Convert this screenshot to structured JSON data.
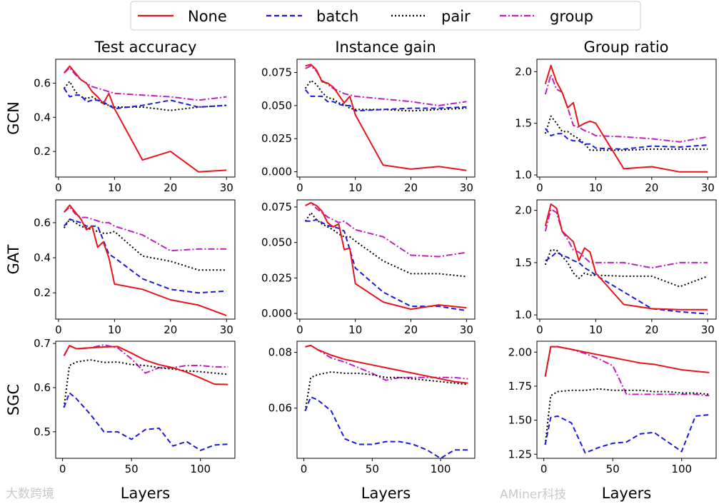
{
  "chart_data": {
    "type": "line",
    "legend": {
      "placement": "top-center",
      "entries": [
        {
          "name": "None",
          "color": "#e8141b",
          "style": "solid"
        },
        {
          "name": "batch",
          "color": "#1a1adb",
          "style": "dashed"
        },
        {
          "name": "pair",
          "color": "#000000",
          "style": "dotted"
        },
        {
          "name": "group",
          "color": "#bf1fbf",
          "style": "dashdot"
        }
      ]
    },
    "column_titles": [
      "Test accuracy",
      "Instance gain",
      "Group ratio"
    ],
    "row_labels": [
      "GCN",
      "GAT",
      "SGC"
    ],
    "xlabel": "Layers",
    "watermarks": [
      "大数跨境",
      "AMiner科技"
    ],
    "panels": [
      {
        "row": 0,
        "col": 0,
        "xlim": [
          -0.5,
          31.5
        ],
        "ylim": [
          0.05,
          0.74
        ],
        "xticks": [
          0,
          10,
          20,
          30
        ],
        "xticklabels": [
          "0",
          "10",
          "20",
          "30"
        ],
        "yticks": [
          0.2,
          0.4,
          0.6
        ],
        "yticklabels": [
          "0.2",
          "0.4",
          "0.6"
        ],
        "x": [
          1,
          2,
          3,
          4,
          5,
          6,
          7,
          8,
          9,
          10,
          15,
          20,
          25,
          30
        ],
        "series": {
          "None": [
            0.66,
            0.7,
            0.66,
            0.62,
            0.6,
            0.55,
            0.52,
            0.48,
            0.54,
            0.45,
            0.15,
            0.2,
            0.08,
            0.09
          ],
          "batch": [
            0.57,
            0.52,
            0.53,
            0.53,
            0.49,
            0.5,
            0.5,
            0.49,
            0.47,
            0.45,
            0.47,
            0.5,
            0.46,
            0.47
          ],
          "pair": [
            0.57,
            0.61,
            0.55,
            0.52,
            0.51,
            0.52,
            0.5,
            0.48,
            0.47,
            0.46,
            0.46,
            0.44,
            0.46,
            0.47
          ],
          "group": [
            0.66,
            0.69,
            0.65,
            0.62,
            0.6,
            0.58,
            0.57,
            0.56,
            0.55,
            0.54,
            0.53,
            0.52,
            0.5,
            0.52
          ]
        }
      },
      {
        "row": 0,
        "col": 1,
        "xlim": [
          -0.5,
          31.5
        ],
        "ylim": [
          -0.004,
          0.085
        ],
        "xticks": [
          0,
          10,
          20,
          30
        ],
        "xticklabels": [
          "0",
          "10",
          "20",
          "30"
        ],
        "yticks": [
          0,
          0.025,
          0.05,
          0.075
        ],
        "yticklabels": [
          "0.000",
          "0.025",
          "0.050",
          "0.075"
        ],
        "x": [
          1,
          2,
          3,
          4,
          5,
          6,
          7,
          8,
          9,
          10,
          15,
          20,
          25,
          30
        ],
        "series": {
          "None": [
            0.08,
            0.081,
            0.077,
            0.068,
            0.067,
            0.064,
            0.058,
            0.052,
            0.057,
            0.043,
            0.005,
            0.002,
            0.004,
            0.001
          ],
          "batch": [
            0.062,
            0.057,
            0.057,
            0.057,
            0.053,
            0.053,
            0.051,
            0.05,
            0.05,
            0.046,
            0.047,
            0.048,
            0.048,
            0.049
          ],
          "pair": [
            0.063,
            0.069,
            0.066,
            0.06,
            0.056,
            0.055,
            0.052,
            0.051,
            0.048,
            0.047,
            0.047,
            0.046,
            0.047,
            0.048
          ],
          "group": [
            0.078,
            0.08,
            0.076,
            0.069,
            0.066,
            0.063,
            0.061,
            0.059,
            0.058,
            0.057,
            0.055,
            0.053,
            0.05,
            0.053
          ]
        }
      },
      {
        "row": 0,
        "col": 2,
        "xlim": [
          -0.5,
          31.5
        ],
        "ylim": [
          0.98,
          2.12
        ],
        "xticks": [
          0,
          10,
          20,
          30
        ],
        "xticklabels": [
          "0",
          "10",
          "20",
          "30"
        ],
        "yticks": [
          1.0,
          1.5,
          2.0
        ],
        "yticklabels": [
          "1.0",
          "1.5",
          "2.0"
        ],
        "x": [
          1,
          2,
          3,
          4,
          5,
          6,
          7,
          8,
          9,
          10,
          15,
          20,
          25,
          30
        ],
        "series": {
          "None": [
            1.88,
            2.06,
            1.9,
            1.8,
            1.65,
            1.7,
            1.47,
            1.5,
            1.52,
            1.5,
            1.06,
            1.08,
            1.03,
            1.03
          ],
          "batch": [
            1.45,
            1.38,
            1.4,
            1.4,
            1.35,
            1.33,
            1.33,
            1.3,
            1.3,
            1.26,
            1.25,
            1.28,
            1.27,
            1.29
          ],
          "pair": [
            1.4,
            1.57,
            1.5,
            1.42,
            1.42,
            1.38,
            1.35,
            1.3,
            1.24,
            1.24,
            1.24,
            1.25,
            1.25,
            1.25
          ],
          "group": [
            1.78,
            1.97,
            1.83,
            1.8,
            1.65,
            1.48,
            1.46,
            1.43,
            1.41,
            1.38,
            1.37,
            1.35,
            1.32,
            1.37
          ]
        }
      },
      {
        "row": 1,
        "col": 0,
        "xlim": [
          -0.5,
          31.5
        ],
        "ylim": [
          0.05,
          0.73
        ],
        "xticks": [
          0,
          10,
          20,
          30
        ],
        "xticklabels": [
          "0",
          "10",
          "20",
          "30"
        ],
        "yticks": [
          0.2,
          0.4,
          0.6
        ],
        "yticklabels": [
          "0.2",
          "0.4",
          "0.6"
        ],
        "x": [
          1,
          2,
          3,
          4,
          5,
          6,
          7,
          8,
          9,
          10,
          15,
          20,
          25,
          30
        ],
        "series": {
          "None": [
            0.66,
            0.7,
            0.66,
            0.62,
            0.56,
            0.58,
            0.46,
            0.49,
            0.4,
            0.25,
            0.22,
            0.16,
            0.13,
            0.07
          ],
          "batch": [
            0.58,
            0.62,
            0.61,
            0.6,
            0.58,
            0.58,
            0.58,
            0.5,
            0.42,
            0.4,
            0.28,
            0.22,
            0.2,
            0.21
          ],
          "pair": [
            0.57,
            0.62,
            0.6,
            0.58,
            0.57,
            0.56,
            0.55,
            0.54,
            0.54,
            0.55,
            0.41,
            0.38,
            0.33,
            0.33
          ],
          "group": [
            0.66,
            0.69,
            0.65,
            0.63,
            0.63,
            0.62,
            0.61,
            0.6,
            0.6,
            0.58,
            0.53,
            0.44,
            0.45,
            0.45
          ]
        }
      },
      {
        "row": 1,
        "col": 1,
        "xlim": [
          -0.5,
          31.5
        ],
        "ylim": [
          -0.004,
          0.08
        ],
        "xticks": [
          0,
          10,
          20,
          30
        ],
        "xticklabels": [
          "0",
          "10",
          "20",
          "30"
        ],
        "yticks": [
          0,
          0.025,
          0.05,
          0.075
        ],
        "yticklabels": [
          "0.000",
          "0.025",
          "0.050",
          "0.075"
        ],
        "x": [
          1,
          2,
          3,
          4,
          5,
          6,
          7,
          8,
          9,
          10,
          15,
          20,
          25,
          30
        ],
        "series": {
          "None": [
            0.076,
            0.078,
            0.076,
            0.072,
            0.064,
            0.061,
            0.063,
            0.045,
            0.046,
            0.021,
            0.008,
            0.003,
            0.006,
            0.004
          ],
          "batch": [
            0.065,
            0.065,
            0.066,
            0.064,
            0.062,
            0.061,
            0.06,
            0.058,
            0.045,
            0.032,
            0.015,
            0.005,
            0.005,
            0.002
          ],
          "pair": [
            0.065,
            0.071,
            0.066,
            0.063,
            0.061,
            0.059,
            0.056,
            0.054,
            0.054,
            0.051,
            0.037,
            0.028,
            0.028,
            0.026
          ],
          "group": [
            0.076,
            0.078,
            0.074,
            0.071,
            0.068,
            0.066,
            0.064,
            0.065,
            0.062,
            0.059,
            0.054,
            0.041,
            0.04,
            0.043
          ]
        }
      },
      {
        "row": 1,
        "col": 2,
        "xlim": [
          -0.5,
          31.5
        ],
        "ylim": [
          0.96,
          2.1
        ],
        "xticks": [
          0,
          10,
          20,
          30
        ],
        "xticklabels": [
          "0",
          "10",
          "20",
          "30"
        ],
        "yticks": [
          1.0,
          1.5,
          2.0
        ],
        "yticklabels": [
          "1.0",
          "1.5",
          "2.0"
        ],
        "x": [
          1,
          2,
          3,
          4,
          5,
          6,
          7,
          8,
          9,
          10,
          15,
          20,
          25,
          30
        ],
        "series": {
          "None": [
            1.85,
            2.06,
            2.02,
            1.8,
            1.75,
            1.7,
            1.52,
            1.64,
            1.6,
            1.4,
            1.1,
            1.06,
            1.05,
            1.05
          ],
          "batch": [
            1.52,
            1.55,
            1.6,
            1.57,
            1.55,
            1.52,
            1.5,
            1.45,
            1.42,
            1.38,
            1.22,
            1.06,
            1.03,
            1.01
          ],
          "pair": [
            1.48,
            1.62,
            1.62,
            1.56,
            1.5,
            1.4,
            1.35,
            1.4,
            1.38,
            1.38,
            1.37,
            1.37,
            1.27,
            1.37
          ],
          "group": [
            1.8,
            2.01,
            1.98,
            1.8,
            1.72,
            1.62,
            1.6,
            1.55,
            1.5,
            1.5,
            1.5,
            1.45,
            1.5,
            1.5
          ]
        }
      },
      {
        "row": 2,
        "col": 0,
        "xlim": [
          -5,
          125
        ],
        "ylim": [
          0.44,
          0.705
        ],
        "xticks": [
          0,
          50,
          100
        ],
        "xticklabels": [
          "0",
          "50",
          "100"
        ],
        "yticks": [
          0.5,
          0.6,
          0.7
        ],
        "yticklabels": [
          "0.5",
          "0.6",
          "0.7"
        ],
        "x": [
          1,
          5,
          10,
          20,
          30,
          40,
          50,
          60,
          70,
          80,
          90,
          100,
          110,
          120
        ],
        "series": {
          "None": [
            0.672,
            0.695,
            0.688,
            0.69,
            0.692,
            0.693,
            0.678,
            0.662,
            0.652,
            0.645,
            0.635,
            0.622,
            0.608,
            0.607
          ],
          "batch": [
            0.555,
            0.588,
            0.575,
            0.54,
            0.5,
            0.5,
            0.483,
            0.505,
            0.508,
            0.468,
            0.478,
            0.458,
            0.47,
            0.472
          ],
          "pair": [
            0.555,
            0.65,
            0.658,
            0.663,
            0.657,
            0.658,
            0.652,
            0.65,
            0.645,
            0.642,
            0.638,
            0.636,
            0.633,
            0.63
          ],
          "group": [
            0.672,
            0.695,
            0.688,
            0.69,
            0.697,
            0.69,
            0.665,
            0.633,
            0.645,
            0.645,
            0.65,
            0.65,
            0.647,
            0.647
          ]
        }
      },
      {
        "row": 2,
        "col": 1,
        "xlim": [
          -5,
          125
        ],
        "ylim": [
          0.042,
          0.084
        ],
        "xticks": [
          0,
          50,
          100
        ],
        "xticklabels": [
          "0",
          "50",
          "100"
        ],
        "yticks": [
          0.06,
          0.08
        ],
        "yticklabels": [
          "0.06",
          "0.08"
        ],
        "x": [
          1,
          5,
          10,
          20,
          30,
          40,
          50,
          60,
          70,
          80,
          90,
          100,
          110,
          120
        ],
        "series": {
          "None": [
            0.082,
            0.0825,
            0.081,
            0.079,
            0.0775,
            0.0765,
            0.0755,
            0.0745,
            0.0735,
            0.0725,
            0.0715,
            0.0705,
            0.0695,
            0.069
          ],
          "batch": [
            0.059,
            0.064,
            0.063,
            0.059,
            0.049,
            0.047,
            0.047,
            0.048,
            0.048,
            0.047,
            0.045,
            0.042,
            0.045,
            0.045
          ],
          "pair": [
            0.059,
            0.071,
            0.072,
            0.073,
            0.0725,
            0.0725,
            0.072,
            0.071,
            0.071,
            0.0705,
            0.07,
            0.0695,
            0.069,
            0.0685
          ],
          "group": [
            0.082,
            0.0825,
            0.081,
            0.078,
            0.0765,
            0.0745,
            0.0725,
            0.07,
            0.071,
            0.071,
            0.071,
            0.071,
            0.071,
            0.0705
          ]
        }
      },
      {
        "row": 2,
        "col": 2,
        "xlim": [
          -5,
          125
        ],
        "ylim": [
          1.22,
          2.08
        ],
        "xticks": [
          0,
          50,
          100
        ],
        "xticklabels": [
          "0",
          "50",
          "100"
        ],
        "yticks": [
          1.25,
          1.5,
          1.75,
          2.0
        ],
        "yticklabels": [
          "1.25",
          "1.50",
          "1.75",
          "2.00"
        ],
        "x": [
          1,
          5,
          10,
          20,
          30,
          40,
          50,
          60,
          70,
          80,
          90,
          100,
          110,
          120
        ],
        "series": {
          "None": [
            1.82,
            2.04,
            2.04,
            2.02,
            2.0,
            1.98,
            1.96,
            1.94,
            1.92,
            1.91,
            1.89,
            1.87,
            1.86,
            1.85
          ],
          "batch": [
            1.32,
            1.52,
            1.53,
            1.48,
            1.26,
            1.3,
            1.33,
            1.34,
            1.4,
            1.41,
            1.34,
            1.27,
            1.53,
            1.54
          ],
          "pair": [
            1.32,
            1.68,
            1.71,
            1.72,
            1.72,
            1.73,
            1.72,
            1.72,
            1.72,
            1.71,
            1.71,
            1.7,
            1.7,
            1.69
          ],
          "group": [
            1.82,
            2.04,
            2.04,
            2.02,
            1.99,
            1.95,
            1.9,
            1.69,
            1.69,
            1.69,
            1.69,
            1.69,
            1.69,
            1.68
          ]
        }
      }
    ]
  }
}
